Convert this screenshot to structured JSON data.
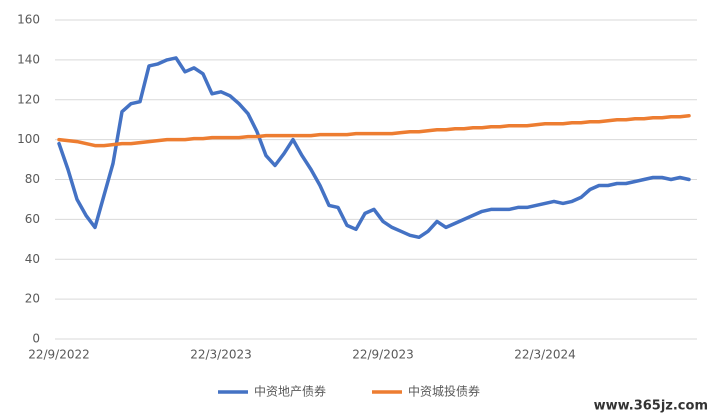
{
  "chart_data": {
    "type": "line",
    "categories": [
      "22/9/2022",
      null,
      null,
      null,
      null,
      null,
      null,
      null,
      null,
      null,
      null,
      null,
      null,
      null,
      null,
      null,
      null,
      null,
      "22/3/2023",
      null,
      null,
      null,
      null,
      null,
      null,
      null,
      null,
      null,
      null,
      null,
      null,
      null,
      null,
      null,
      null,
      null,
      "22/9/2023",
      null,
      null,
      null,
      null,
      null,
      null,
      null,
      null,
      null,
      null,
      null,
      null,
      null,
      null,
      null,
      null,
      null,
      "22/3/2024",
      null,
      null,
      null,
      null,
      null,
      null,
      null,
      null,
      null,
      null,
      null,
      null,
      null,
      null,
      null,
      null
    ],
    "series": [
      {
        "name": "中资地产债券",
        "color": "#4472c4",
        "values": [
          98,
          85,
          70,
          62,
          56,
          72,
          88,
          114,
          118,
          119,
          137,
          138,
          140,
          141,
          134,
          136,
          133,
          123,
          124,
          122,
          118,
          113,
          104,
          92,
          87,
          93,
          100,
          92,
          85,
          77,
          67,
          66,
          57,
          55,
          63,
          65,
          59,
          56,
          54,
          52,
          51,
          54,
          59,
          56,
          58,
          60,
          62,
          64,
          65,
          65,
          65,
          66,
          66,
          67,
          68,
          69,
          68,
          69,
          71,
          75,
          77,
          77,
          78,
          78,
          79,
          80,
          81,
          81,
          80,
          81,
          80
        ]
      },
      {
        "name": "中资城投债券",
        "color": "#ed7d31",
        "values": [
          100,
          99.5,
          99,
          98,
          97,
          97,
          97.5,
          98,
          98,
          98.5,
          99,
          99.5,
          100,
          100,
          100,
          100.5,
          100.5,
          101,
          101,
          101,
          101,
          101.5,
          101.5,
          102,
          102,
          102,
          102,
          102,
          102,
          102.5,
          102.5,
          102.5,
          102.5,
          103,
          103,
          103,
          103,
          103,
          103.5,
          104,
          104,
          104.5,
          105,
          105,
          105.5,
          105.5,
          106,
          106,
          106.5,
          106.5,
          107,
          107,
          107,
          107.5,
          108,
          108,
          108,
          108.5,
          108.5,
          109,
          109,
          109.5,
          110,
          110,
          110.5,
          110.5,
          111,
          111,
          111.5,
          111.5,
          112
        ]
      }
    ],
    "ylim": [
      0,
      160
    ],
    "yticks": [
      0,
      20,
      40,
      60,
      80,
      100,
      120,
      140,
      160
    ],
    "grid": true,
    "legend": "bottom",
    "watermark": "www.365jz.com"
  }
}
